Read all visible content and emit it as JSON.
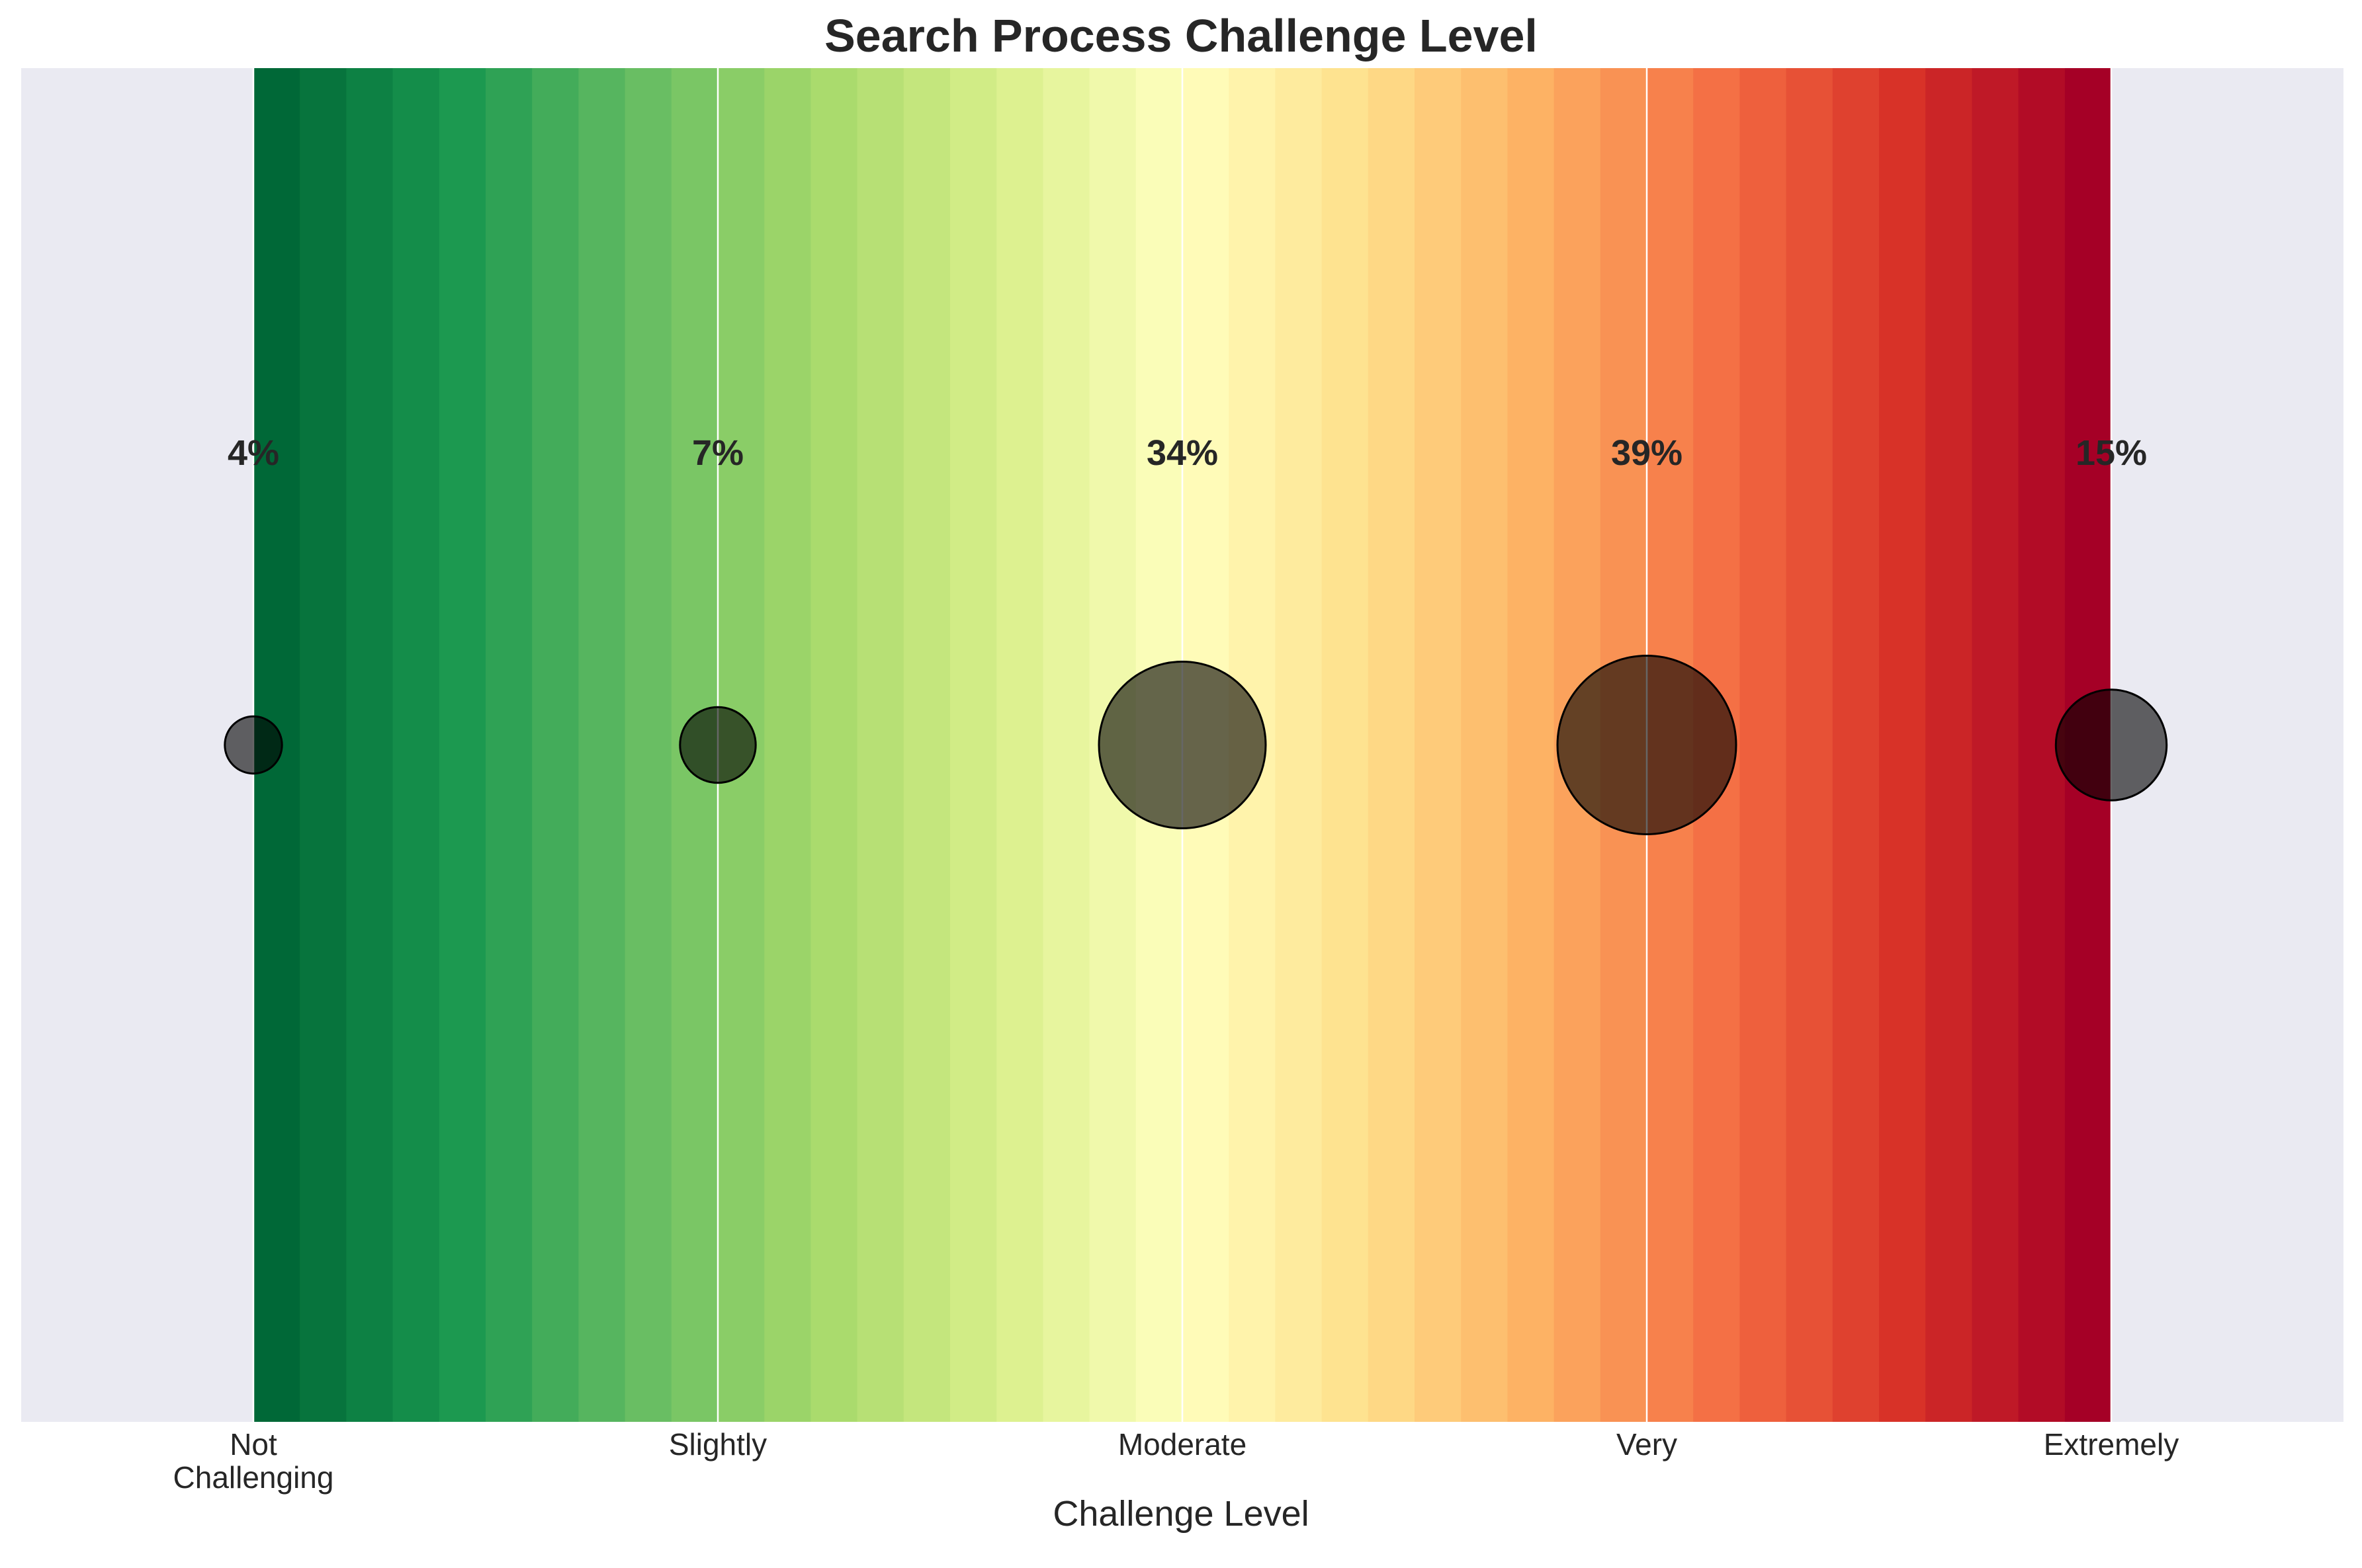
{
  "chart_data": {
    "type": "scatter",
    "title": "Search Process Challenge Level",
    "xlabel": "Challenge Level",
    "ylabel": "",
    "categories": [
      "Not Challenging",
      "Slightly",
      "Moderate",
      "Very",
      "Extremely"
    ],
    "tick_lines": [
      [
        "Not",
        "Challenging"
      ],
      [
        "Slightly"
      ],
      [
        "Moderate"
      ],
      [
        "Very"
      ],
      [
        "Extremely"
      ]
    ],
    "values": [
      4,
      7,
      34,
      39,
      15
    ],
    "value_labels": [
      "4%",
      "7%",
      "34%",
      "39%",
      "15%"
    ],
    "value_unit": "%",
    "colormap": "RdYlGn_r",
    "gradient_stops": [
      "#006837",
      "#1a9850",
      "#66bd63",
      "#a6d96a",
      "#d9ef8b",
      "#ffffbf",
      "#fee08b",
      "#fdae61",
      "#f46d43",
      "#d73027",
      "#a50026"
    ],
    "grid": true,
    "legend": "none",
    "colors": {
      "axes_background": "#eaeaf2",
      "grid": "#ffffff",
      "marker": "#000000",
      "text": "#262626"
    }
  }
}
